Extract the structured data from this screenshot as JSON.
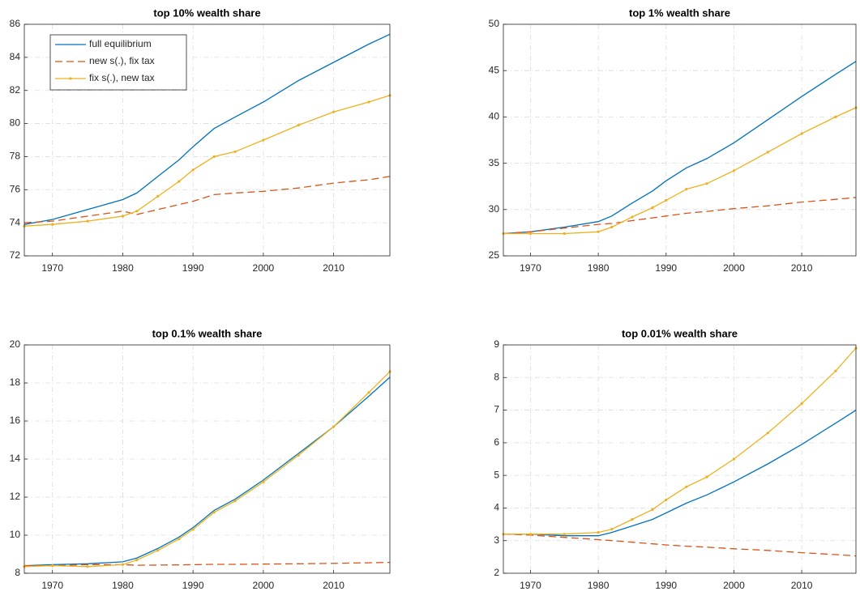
{
  "chart_data": [
    {
      "type": "line",
      "title": "top 10% wealth share",
      "x": [
        1966,
        1970,
        1975,
        1980,
        1982,
        1985,
        1988,
        1990,
        1993,
        1996,
        2000,
        2005,
        2010,
        2015,
        2018
      ],
      "xlim": [
        1966,
        2018
      ],
      "xticks": [
        1970,
        1980,
        1990,
        2000,
        2010
      ],
      "ylim": [
        72,
        86
      ],
      "yticks": [
        72,
        74,
        76,
        78,
        80,
        82,
        84,
        86
      ],
      "grid": true,
      "legend": "northwest",
      "series": [
        {
          "name": "full equilibrium",
          "color": "#0072bd",
          "style": "solid",
          "values": [
            73.9,
            74.2,
            74.8,
            75.4,
            75.8,
            76.8,
            77.8,
            78.6,
            79.7,
            80.4,
            81.3,
            82.6,
            83.7,
            84.8,
            85.4
          ]
        },
        {
          "name": "new s(.), fix tax",
          "color": "#d95319",
          "style": "dashed",
          "values": [
            74.0,
            74.1,
            74.4,
            74.7,
            74.5,
            74.8,
            75.1,
            75.3,
            75.7,
            75.8,
            75.9,
            76.1,
            76.4,
            76.6,
            76.8
          ]
        },
        {
          "name": "fix s(.), new tax",
          "color": "#edb120",
          "style": "dotted-marker",
          "values": [
            73.8,
            73.9,
            74.1,
            74.4,
            74.7,
            75.6,
            76.5,
            77.2,
            78.0,
            78.3,
            79.0,
            79.9,
            80.7,
            81.3,
            81.7
          ]
        }
      ]
    },
    {
      "type": "line",
      "title": "top 1% wealth share",
      "x": [
        1966,
        1970,
        1975,
        1980,
        1982,
        1985,
        1988,
        1990,
        1993,
        1996,
        2000,
        2005,
        2010,
        2015,
        2018
      ],
      "xlim": [
        1966,
        2018
      ],
      "xticks": [
        1970,
        1980,
        1990,
        2000,
        2010
      ],
      "ylim": [
        25,
        50
      ],
      "yticks": [
        25,
        30,
        35,
        40,
        45,
        50
      ],
      "grid": true,
      "series": [
        {
          "color": "#0072bd",
          "style": "solid",
          "values": [
            27.4,
            27.6,
            28.1,
            28.7,
            29.3,
            30.7,
            32.0,
            33.1,
            34.5,
            35.5,
            37.2,
            39.7,
            42.2,
            44.6,
            46.0
          ]
        },
        {
          "color": "#d95319",
          "style": "dashed",
          "values": [
            27.4,
            27.6,
            28.0,
            28.4,
            28.5,
            28.8,
            29.1,
            29.3,
            29.6,
            29.8,
            30.1,
            30.4,
            30.8,
            31.1,
            31.3
          ]
        },
        {
          "color": "#edb120",
          "style": "dotted-marker",
          "values": [
            27.4,
            27.4,
            27.4,
            27.6,
            28.1,
            29.2,
            30.2,
            31.0,
            32.2,
            32.8,
            34.2,
            36.2,
            38.2,
            40.0,
            41.0
          ]
        }
      ]
    },
    {
      "type": "line",
      "title": "top 0.1% wealth share",
      "x": [
        1966,
        1970,
        1975,
        1980,
        1982,
        1985,
        1988,
        1990,
        1993,
        1996,
        2000,
        2005,
        2010,
        2015,
        2018
      ],
      "xlim": [
        1966,
        2018
      ],
      "xticks": [
        1970,
        1980,
        1990,
        2000,
        2010
      ],
      "ylim": [
        8,
        20
      ],
      "yticks": [
        8,
        10,
        12,
        14,
        16,
        18,
        20
      ],
      "grid": true,
      "series": [
        {
          "color": "#0072bd",
          "style": "solid",
          "values": [
            8.4,
            8.45,
            8.5,
            8.6,
            8.8,
            9.3,
            9.9,
            10.4,
            11.3,
            11.9,
            12.9,
            14.3,
            15.7,
            17.3,
            18.3
          ]
        },
        {
          "color": "#d95319",
          "style": "dashed",
          "values": [
            8.4,
            8.4,
            8.45,
            8.45,
            8.42,
            8.43,
            8.44,
            8.45,
            8.47,
            8.47,
            8.48,
            8.5,
            8.52,
            8.55,
            8.57
          ]
        },
        {
          "color": "#edb120",
          "style": "dotted-marker",
          "values": [
            8.35,
            8.4,
            8.35,
            8.45,
            8.7,
            9.2,
            9.8,
            10.3,
            11.2,
            11.8,
            12.8,
            14.2,
            15.7,
            17.5,
            18.6
          ]
        }
      ]
    },
    {
      "type": "line",
      "title": "top 0.01% wealth share",
      "x": [
        1966,
        1970,
        1975,
        1980,
        1982,
        1985,
        1988,
        1990,
        1993,
        1996,
        2000,
        2005,
        2010,
        2015,
        2018
      ],
      "xlim": [
        1966,
        2018
      ],
      "xticks": [
        1970,
        1980,
        1990,
        2000,
        2010
      ],
      "ylim": [
        2,
        9
      ],
      "yticks": [
        2,
        3,
        4,
        5,
        6,
        7,
        8,
        9
      ],
      "grid": true,
      "series": [
        {
          "color": "#0072bd",
          "style": "solid",
          "values": [
            3.2,
            3.2,
            3.15,
            3.15,
            3.25,
            3.45,
            3.65,
            3.85,
            4.15,
            4.4,
            4.8,
            5.35,
            5.95,
            6.6,
            7.0
          ]
        },
        {
          "color": "#d95319",
          "style": "dashed",
          "values": [
            3.2,
            3.17,
            3.1,
            3.03,
            3.0,
            2.95,
            2.9,
            2.87,
            2.83,
            2.8,
            2.75,
            2.7,
            2.63,
            2.57,
            2.53
          ]
        },
        {
          "color": "#edb120",
          "style": "dotted-marker",
          "values": [
            3.2,
            3.2,
            3.2,
            3.25,
            3.35,
            3.65,
            3.95,
            4.25,
            4.65,
            4.95,
            5.5,
            6.3,
            7.2,
            8.2,
            8.9
          ]
        }
      ]
    }
  ]
}
